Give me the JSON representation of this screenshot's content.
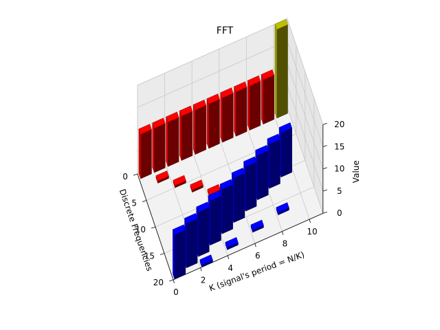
{
  "chart_data": {
    "type": "bar3d",
    "title": "FFT",
    "xlabel": "K (signal's period = N/K)",
    "ylabel": "Discrete Frequencies",
    "zlabel": "Value",
    "xlim": [
      0,
      11
    ],
    "ylim": [
      0,
      20
    ],
    "zlim": [
      0,
      20
    ],
    "x_ticks": [
      "0",
      "2",
      "4",
      "6",
      "8",
      "10"
    ],
    "y_ticks": [
      "0",
      "5",
      "10",
      "15",
      "20"
    ],
    "z_ticks": [
      "0",
      "5",
      "10",
      "15",
      "20"
    ],
    "colors": {
      "real": "#ff0000",
      "imag": "#0000ff",
      "dc": "#bfbf00"
    },
    "series": [
      {
        "color_key": "real",
        "bars": [
          {
            "k": 0,
            "f": 0,
            "value": 10
          },
          {
            "k": 1,
            "f": 0,
            "value": 10
          },
          {
            "k": 2,
            "f": 0,
            "value": 10
          },
          {
            "k": 3,
            "f": 0,
            "value": 10
          },
          {
            "k": 4,
            "f": 0,
            "value": 10
          },
          {
            "k": 5,
            "f": 0,
            "value": 10
          },
          {
            "k": 6,
            "f": 0,
            "value": 10
          },
          {
            "k": 7,
            "f": 0,
            "value": 10
          },
          {
            "k": 8,
            "f": 0,
            "value": 10
          },
          {
            "k": 9,
            "f": 0,
            "value": 10
          },
          {
            "k": 1,
            "f": 2,
            "value": 0.5
          },
          {
            "k": 2,
            "f": 4,
            "value": 0.5
          },
          {
            "k": 3,
            "f": 6,
            "value": 0.5
          },
          {
            "k": 4,
            "f": 8,
            "value": 0.5
          },
          {
            "k": 5,
            "f": 10,
            "value": 0.5
          }
        ]
      },
      {
        "color_key": "imag",
        "bars": [
          {
            "k": 0,
            "f": 19,
            "value": 10
          },
          {
            "k": 1,
            "f": 18,
            "value": 10
          },
          {
            "k": 2,
            "f": 17,
            "value": 10
          },
          {
            "k": 3,
            "f": 16,
            "value": 10
          },
          {
            "k": 4,
            "f": 15,
            "value": 10
          },
          {
            "k": 5,
            "f": 14,
            "value": 10
          },
          {
            "k": 6,
            "f": 13,
            "value": 10
          },
          {
            "k": 7,
            "f": 12,
            "value": 10
          },
          {
            "k": 8,
            "f": 11,
            "value": 10
          },
          {
            "k": 9,
            "f": 10,
            "value": 10
          },
          {
            "k": 2,
            "f": 19,
            "value": 0.5
          },
          {
            "k": 4,
            "f": 18,
            "value": 0.5
          },
          {
            "k": 6,
            "f": 17,
            "value": 0.5
          },
          {
            "k": 8,
            "f": 16,
            "value": 0.5
          }
        ]
      },
      {
        "color_key": "dc",
        "bars": [
          {
            "k": 10,
            "f": 0,
            "value": 20
          }
        ]
      }
    ]
  }
}
